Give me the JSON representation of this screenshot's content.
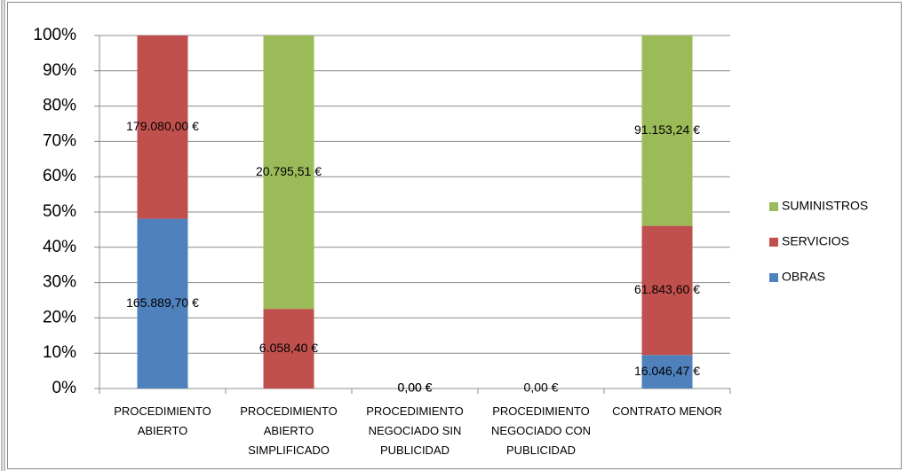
{
  "chart_data": {
    "type": "bar",
    "stacking": "percent",
    "categories": [
      "PROCEDIMIENTO ABIERTO",
      "PROCEDIMIENTO ABIERTO SIMPLIFICADO",
      "PROCEDIMIENTO NEGOCIADO SIN PUBLICIDAD",
      "PROCEDIMIENTO NEGOCIADO CON PUBLICIDAD",
      "CONTRATO MENOR"
    ],
    "series": [
      {
        "name": "OBRAS",
        "color": "#4f81bd",
        "values": [
          165889.7,
          0,
          0,
          0,
          16046.47
        ],
        "value_labels": [
          "165.889,70 €",
          null,
          "0,00 €",
          null,
          "16.046,47 €"
        ]
      },
      {
        "name": "SERVICIOS",
        "color": "#c0504d",
        "values": [
          179080.0,
          6058.4,
          0,
          0,
          61843.6
        ],
        "value_labels": [
          "179.080,00 €",
          "6.058,40 €",
          "0,00 €",
          "0,00 €",
          "61.843,60 €"
        ]
      },
      {
        "name": "SUMINISTROS",
        "color": "#9bbb59",
        "values": [
          0,
          20795.51,
          0,
          0,
          91153.24
        ],
        "value_labels": [
          null,
          "20.795,51 €",
          null,
          null,
          "91.153,24 €"
        ]
      }
    ],
    "ylim": [
      0,
      100
    ],
    "yticks": [
      {
        "value": 0,
        "label": "0%"
      },
      {
        "value": 10,
        "label": "10%"
      },
      {
        "value": 20,
        "label": "20%"
      },
      {
        "value": 30,
        "label": "30%"
      },
      {
        "value": 40,
        "label": "40%"
      },
      {
        "value": 50,
        "label": "50%"
      },
      {
        "value": 60,
        "label": "60%"
      },
      {
        "value": 70,
        "label": "70%"
      },
      {
        "value": 80,
        "label": "80%"
      },
      {
        "value": 90,
        "label": "90%"
      },
      {
        "value": 100,
        "label": "100%"
      }
    ],
    "grid": true,
    "legend": "right"
  }
}
